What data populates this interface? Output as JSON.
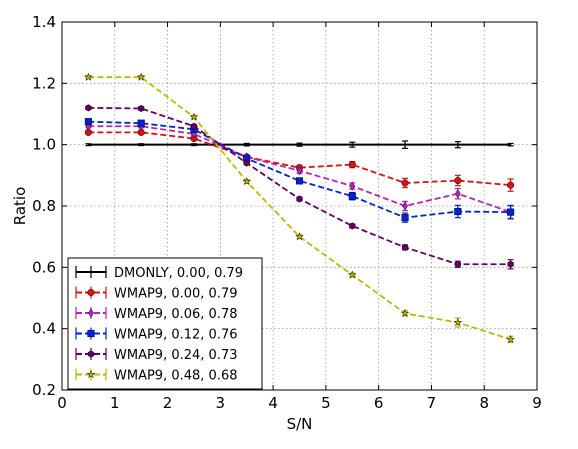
{
  "chart_data": {
    "type": "line",
    "title": "",
    "xlabel": "S/N",
    "ylabel": "Ratio",
    "xlim": [
      0,
      9
    ],
    "ylim": [
      0.2,
      1.4
    ],
    "xticks": [
      "0",
      "1",
      "2",
      "3",
      "4",
      "5",
      "6",
      "7",
      "8",
      "9"
    ],
    "yticks": [
      "0.2",
      "0.4",
      "0.6",
      "0.8",
      "1.0",
      "1.2",
      "1.4"
    ],
    "grid": true,
    "legend_position": "bottom-left",
    "x": [
      0.5,
      1.5,
      2.5,
      3.5,
      4.5,
      5.5,
      6.5,
      7.5,
      8.5
    ],
    "series": [
      {
        "name": "DMONLY, 0.00, 0.79",
        "color": "#000000",
        "marker": "none",
        "dash": "solid",
        "values": [
          1.0,
          1.0,
          1.0,
          1.0,
          1.0,
          1.0,
          1.0,
          1.0,
          1.0
        ],
        "errors": [
          0.003,
          0.003,
          0.003,
          0.004,
          0.005,
          0.008,
          0.012,
          0.01,
          0.004
        ]
      },
      {
        "name": "WMAP9, 0.00, 0.79",
        "color": "#dd1111",
        "marker": "circle",
        "dash": "dashed",
        "values": [
          1.04,
          1.04,
          1.02,
          0.96,
          0.925,
          0.935,
          0.875,
          0.883,
          0.868
        ],
        "errors": [
          0.005,
          0.005,
          0.005,
          0.006,
          0.008,
          0.01,
          0.015,
          0.017,
          0.02
        ]
      },
      {
        "name": "WMAP9, 0.06, 0.78",
        "color": "#bb22bb",
        "marker": "diamond",
        "dash": "dashed",
        "values": [
          1.06,
          1.06,
          1.035,
          0.96,
          0.915,
          0.865,
          0.8,
          0.84,
          0.78
        ],
        "errors": [
          0.005,
          0.005,
          0.005,
          0.006,
          0.008,
          0.01,
          0.015,
          0.017,
          0.02
        ]
      },
      {
        "name": "WMAP9, 0.12, 0.76",
        "color": "#0022dd",
        "marker": "square",
        "dash": "dashed",
        "values": [
          1.075,
          1.07,
          1.05,
          0.955,
          0.882,
          0.832,
          0.762,
          0.782,
          0.78
        ],
        "errors": [
          0.005,
          0.005,
          0.005,
          0.006,
          0.008,
          0.012,
          0.015,
          0.02,
          0.022
        ]
      },
      {
        "name": "WMAP9, 0.24, 0.73",
        "color": "#660066",
        "marker": "hexagon",
        "dash": "dashed",
        "values": [
          1.12,
          1.118,
          1.06,
          0.94,
          0.823,
          0.735,
          0.665,
          0.61,
          0.61
        ],
        "errors": [
          0.005,
          0.005,
          0.005,
          0.006,
          0.006,
          0.006,
          0.008,
          0.01,
          0.015
        ]
      },
      {
        "name": "WMAP9, 0.48, 0.68",
        "color": "#bbbb00",
        "marker": "star",
        "dash": "dashed",
        "values": [
          1.22,
          1.22,
          1.09,
          0.88,
          0.7,
          0.575,
          0.45,
          0.42,
          0.365
        ],
        "errors": [
          0.005,
          0.005,
          0.005,
          0.006,
          0.006,
          0.006,
          0.008,
          0.015,
          0.01
        ]
      }
    ]
  }
}
